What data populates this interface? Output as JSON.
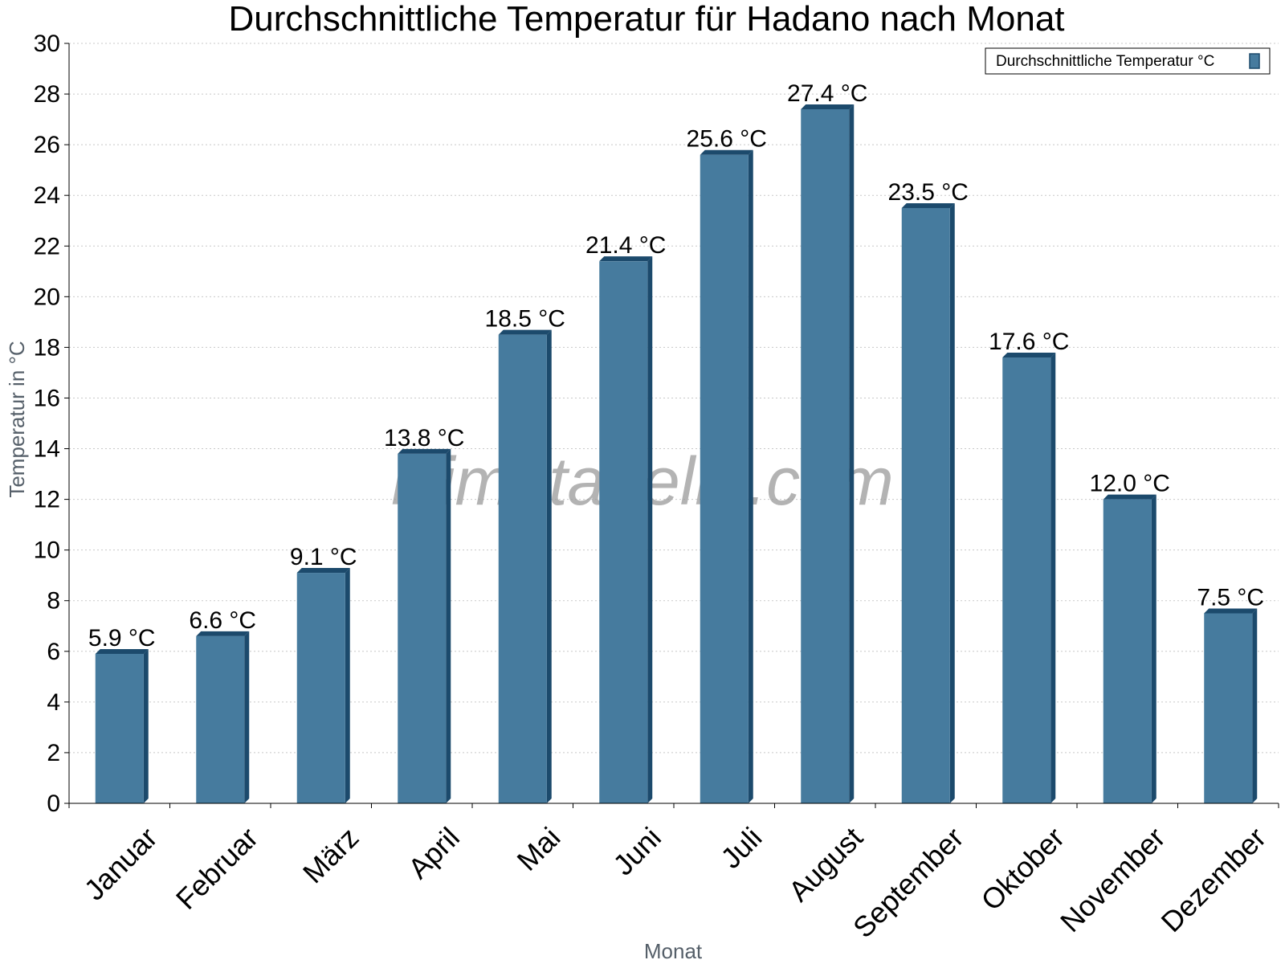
{
  "chart_data": {
    "type": "bar",
    "title": "Durchschnittliche Temperatur für Hadano nach Monat",
    "xlabel": "Monat",
    "ylabel": "Temperatur in °C",
    "categories": [
      "Januar",
      "Februar",
      "März",
      "April",
      "Mai",
      "Juni",
      "Juli",
      "August",
      "September",
      "Oktober",
      "November",
      "Dezember"
    ],
    "series": [
      {
        "name": "Durchschnittliche Temperatur °C",
        "values": [
          5.9,
          6.6,
          9.1,
          13.8,
          18.5,
          21.4,
          25.6,
          27.4,
          23.5,
          17.6,
          12.0,
          7.5
        ],
        "labels": [
          "5.9 °C",
          "6.6 °C",
          "9.1 °C",
          "13.8 °C",
          "18.5 °C",
          "21.4 °C",
          "25.6 °C",
          "27.4 °C",
          "23.5 °C",
          "17.6 °C",
          "12.0 °C",
          "7.5 °C"
        ],
        "color": "#467b9e",
        "edge_color": "#1c4a6c"
      }
    ],
    "ylim": [
      0,
      30
    ],
    "yticks": [
      "0",
      "2",
      "4",
      "6",
      "8",
      "10",
      "12",
      "14",
      "16",
      "18",
      "20",
      "22",
      "24",
      "26",
      "28",
      "30"
    ],
    "grid": true,
    "legend_position": "top-right",
    "watermark": "klimatabelle.com"
  }
}
